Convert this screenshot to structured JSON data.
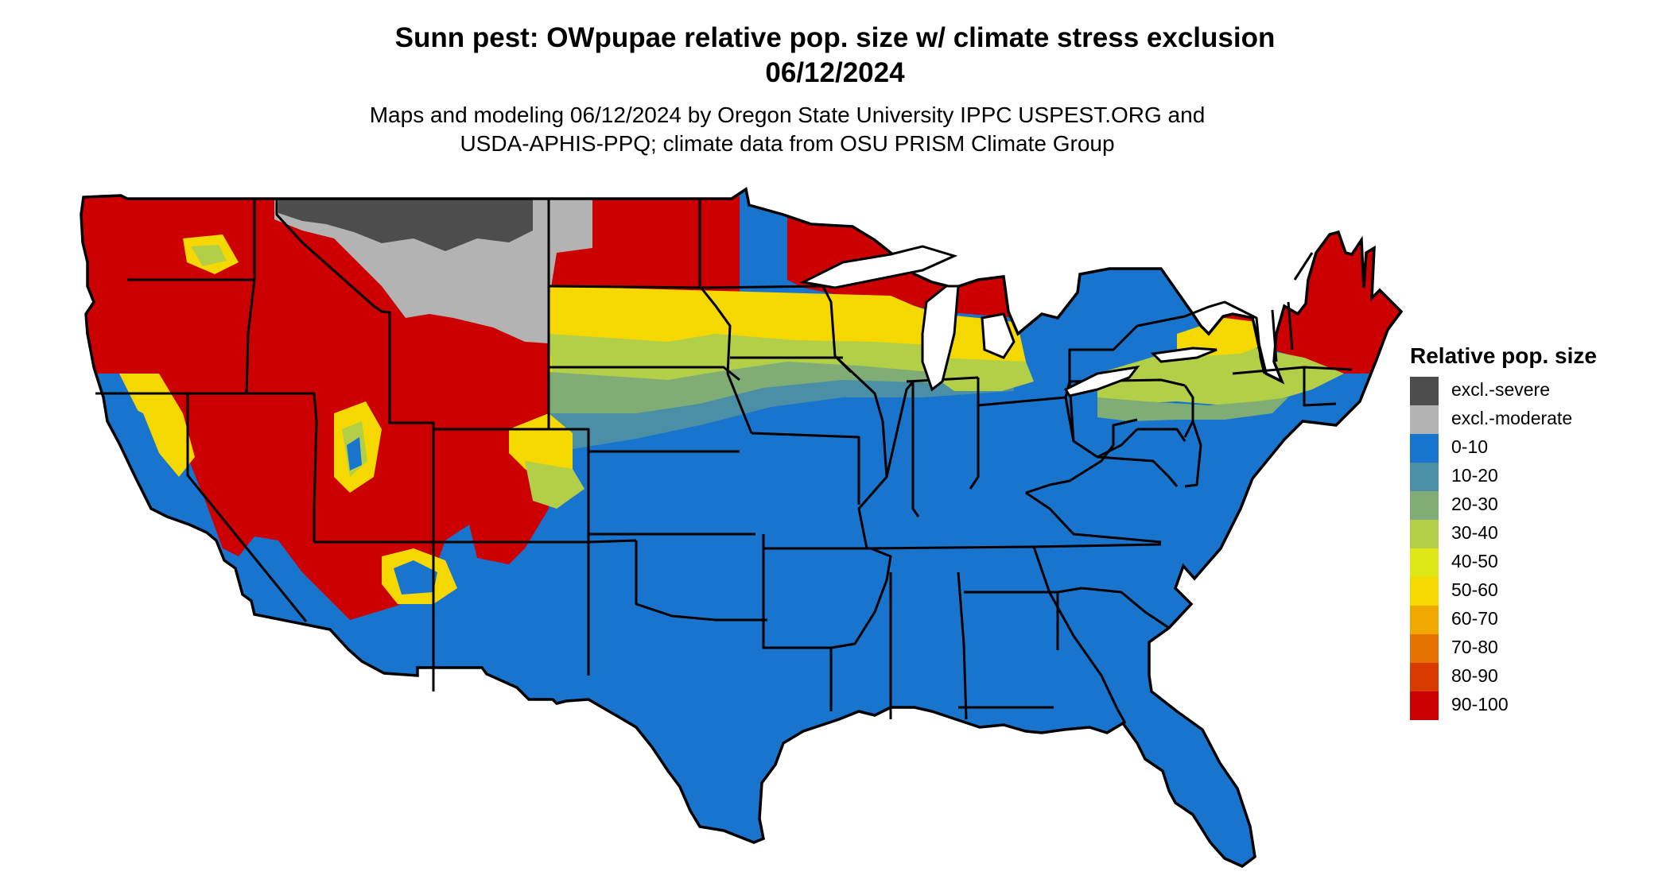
{
  "title": {
    "line1": "Sunn pest: OWpupae relative pop. size w/ climate stress exclusion",
    "line2": "06/12/2024"
  },
  "subtitle": {
    "line1": "Maps and modeling 06/12/2024 by Oregon State University IPPC USPEST.ORG and",
    "line2": "USDA-APHIS-PPQ; climate data from OSU PRISM Climate Group"
  },
  "legend": {
    "title": "Relative pop. size",
    "items": [
      {
        "label": "excl.-severe",
        "color": "#4d4d4d"
      },
      {
        "label": "excl.-moderate",
        "color": "#b3b3b3"
      },
      {
        "label": "0-10",
        "color": "#1874cd"
      },
      {
        "label": "10-20",
        "color": "#4a8fa5"
      },
      {
        "label": "20-30",
        "color": "#7fad75"
      },
      {
        "label": "30-40",
        "color": "#b2cf47"
      },
      {
        "label": "40-50",
        "color": "#dfe615"
      },
      {
        "label": "50-60",
        "color": "#f5d800"
      },
      {
        "label": "60-70",
        "color": "#efa800"
      },
      {
        "label": "70-80",
        "color": "#e57200"
      },
      {
        "label": "80-90",
        "color": "#d83a00"
      },
      {
        "label": "90-100",
        "color": "#cc0000"
      }
    ]
  }
}
